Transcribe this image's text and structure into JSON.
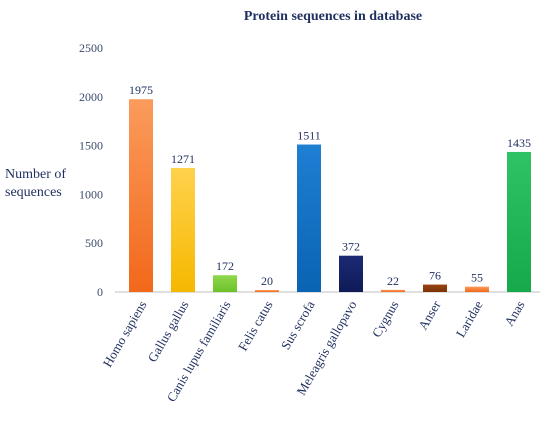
{
  "chart_data": {
    "type": "bar",
    "title": "Protein sequences in database",
    "ylabel_lines": [
      "Number of",
      "sequences"
    ],
    "xlabel": "",
    "ylim": [
      0,
      2500
    ],
    "yticks": [
      0,
      500,
      1000,
      1500,
      2000,
      2500
    ],
    "grid": false,
    "categories": [
      "Homo sapiens",
      "Gallus gallus",
      "Canis lupus familiaris",
      "Felis catus",
      "Sus scrofa",
      "Meleagris gallopavo",
      "Cygnus",
      "Anser",
      "Laridae",
      "Anas"
    ],
    "values": [
      1975,
      1271,
      172,
      20,
      1511,
      372,
      22,
      76,
      55,
      1435
    ],
    "colors": [
      [
        "#fb9b5c",
        "#f2681a"
      ],
      [
        "#ffd24d",
        "#f5b800"
      ],
      [
        "#8fd84d",
        "#6cc12a"
      ],
      [
        "#fb9b5c",
        "#f2681a"
      ],
      [
        "#1f7fd3",
        "#0a63b3"
      ],
      [
        "#1b2a74",
        "#0f1b57"
      ],
      [
        "#fb9b5c",
        "#f2681a"
      ],
      [
        "#9a4410",
        "#7a3208"
      ],
      [
        "#fb9b5c",
        "#f2681a"
      ],
      [
        "#2fc364",
        "#16a94a"
      ]
    ]
  }
}
